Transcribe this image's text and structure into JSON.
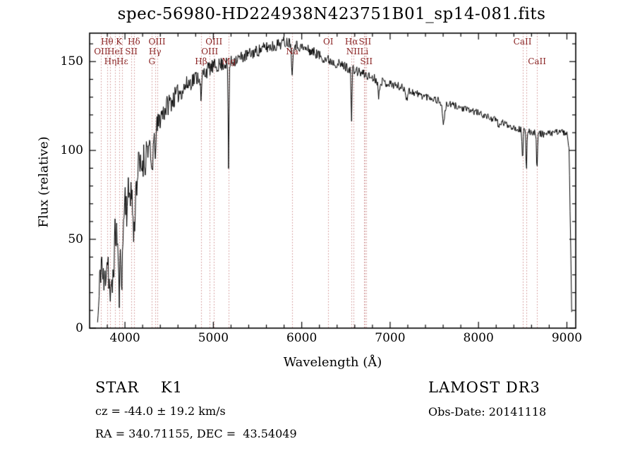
{
  "chart_data": {
    "type": "line",
    "title": "spec-56980-HD224938N423751B01_sp14-081.fits",
    "xlabel": "Wavelength (Å)",
    "ylabel": "Flux (relative)",
    "xlim": [
      3600,
      9100
    ],
    "ylim": [
      0,
      166
    ],
    "x_ticks": [
      4000,
      5000,
      6000,
      7000,
      8000,
      9000
    ],
    "y_ticks": [
      0,
      50,
      100,
      150
    ],
    "x_minor_step": 200,
    "y_minor_step": 10,
    "grid": false,
    "legend": "none",
    "frame_color": "#000000",
    "spectrum_color": "#000000",
    "line_marker_color": "#cc8a8a",
    "line_label_color": "#8b2525",
    "series": {
      "name": "flux",
      "range": [
        3690,
        9055
      ],
      "sample_step": 6,
      "seed": 11,
      "continuum": [
        [
          3690,
          3
        ],
        [
          3705,
          12
        ],
        [
          3720,
          32
        ],
        [
          3735,
          40
        ],
        [
          3750,
          28
        ],
        [
          3765,
          22
        ],
        [
          3780,
          32
        ],
        [
          3795,
          40
        ],
        [
          3810,
          38
        ],
        [
          3825,
          22
        ],
        [
          3840,
          14
        ],
        [
          3855,
          22
        ],
        [
          3870,
          35
        ],
        [
          3885,
          48
        ],
        [
          3900,
          55
        ],
        [
          3915,
          50
        ],
        [
          3930,
          42
        ],
        [
          3945,
          38
        ],
        [
          3960,
          42
        ],
        [
          3975,
          55
        ],
        [
          3990,
          68
        ],
        [
          4005,
          75
        ],
        [
          4020,
          68
        ],
        [
          4040,
          74
        ],
        [
          4060,
          80
        ],
        [
          4080,
          72
        ],
        [
          4100,
          63
        ],
        [
          4120,
          76
        ],
        [
          4140,
          86
        ],
        [
          4160,
          92
        ],
        [
          4180,
          88
        ],
        [
          4200,
          94
        ],
        [
          4230,
          99
        ],
        [
          4260,
          103
        ],
        [
          4290,
          97
        ],
        [
          4320,
          104
        ],
        [
          4350,
          110
        ],
        [
          4400,
          119
        ],
        [
          4450,
          123
        ],
        [
          4500,
          127
        ],
        [
          4550,
          129
        ],
        [
          4600,
          132
        ],
        [
          4650,
          134
        ],
        [
          4700,
          137
        ],
        [
          4750,
          139
        ],
        [
          4800,
          141
        ],
        [
          4850,
          142
        ],
        [
          4900,
          144
        ],
        [
          4950,
          146
        ],
        [
          5000,
          147
        ],
        [
          5060,
          148
        ],
        [
          5120,
          149
        ],
        [
          5180,
          149
        ],
        [
          5240,
          151
        ],
        [
          5300,
          152
        ],
        [
          5400,
          154
        ],
        [
          5500,
          156
        ],
        [
          5600,
          158
        ],
        [
          5700,
          159
        ],
        [
          5800,
          161
        ],
        [
          5870,
          161
        ],
        [
          5950,
          159
        ],
        [
          6050,
          157
        ],
        [
          6150,
          155
        ],
        [
          6250,
          152
        ],
        [
          6350,
          150
        ],
        [
          6450,
          148
        ],
        [
          6550,
          146
        ],
        [
          6650,
          144
        ],
        [
          6750,
          142
        ],
        [
          6850,
          140
        ],
        [
          6950,
          138
        ],
        [
          7050,
          137
        ],
        [
          7150,
          135
        ],
        [
          7250,
          133
        ],
        [
          7350,
          131
        ],
        [
          7450,
          130
        ],
        [
          7550,
          128
        ],
        [
          7650,
          126
        ],
        [
          7750,
          125
        ],
        [
          7850,
          123
        ],
        [
          7950,
          122
        ],
        [
          8050,
          120
        ],
        [
          8150,
          118
        ],
        [
          8250,
          116
        ],
        [
          8350,
          114
        ],
        [
          8450,
          112
        ],
        [
          8550,
          111
        ],
        [
          8650,
          110
        ],
        [
          8750,
          109
        ],
        [
          8850,
          110
        ],
        [
          8930,
          111
        ],
        [
          9000,
          109
        ],
        [
          9025,
          100
        ],
        [
          9040,
          55
        ],
        [
          9055,
          6
        ]
      ],
      "absorption_bands": [
        [
          3933,
          22,
          7
        ],
        [
          3970,
          18,
          7
        ],
        [
          4102,
          14,
          7
        ],
        [
          4226,
          8,
          5
        ],
        [
          4305,
          12,
          9
        ],
        [
          4340,
          10,
          6
        ],
        [
          4861,
          16,
          6
        ],
        [
          5172,
          58,
          5
        ],
        [
          5892,
          20,
          6
        ],
        [
          6563,
          30,
          5
        ],
        [
          6870,
          9,
          8
        ],
        [
          7190,
          5,
          10
        ],
        [
          7605,
          11,
          14
        ],
        [
          8230,
          4,
          8
        ],
        [
          8498,
          18,
          5
        ],
        [
          8542,
          25,
          5
        ],
        [
          8662,
          22,
          5
        ]
      ],
      "noise_profile": [
        [
          3690,
          11
        ],
        [
          3850,
          13
        ],
        [
          4000,
          12
        ],
        [
          4150,
          11
        ],
        [
          4300,
          8
        ],
        [
          4500,
          6
        ],
        [
          4700,
          5
        ],
        [
          4900,
          4.5
        ],
        [
          5100,
          4
        ],
        [
          5400,
          3.5
        ],
        [
          5700,
          3.5
        ],
        [
          6000,
          3
        ],
        [
          6300,
          3
        ],
        [
          6600,
          2.8
        ],
        [
          7000,
          2.4
        ],
        [
          7400,
          2.2
        ],
        [
          7800,
          2
        ],
        [
          8200,
          1.8
        ],
        [
          8600,
          2
        ],
        [
          9055,
          1.5
        ]
      ]
    },
    "spectral_lines": [
      {
        "label": "Hθ",
        "wavelength": 3798,
        "row": 0
      },
      {
        "label": "K",
        "wavelength": 3933,
        "row": 0
      },
      {
        "label": "Hδ",
        "wavelength": 4102,
        "row": 0
      },
      {
        "label": "OIII",
        "wavelength": 4363,
        "row": 0
      },
      {
        "label": "OIII",
        "wavelength": 5007,
        "row": 0
      },
      {
        "label": "OI",
        "wavelength": 6300,
        "row": 0
      },
      {
        "label": "Hα",
        "wavelength": 6563,
        "row": 0
      },
      {
        "label": "SII",
        "wavelength": 6716,
        "row": 0
      },
      {
        "label": "CaII",
        "wavelength": 8498,
        "row": 0
      },
      {
        "label": "OII",
        "wavelength": 3727,
        "row": 1
      },
      {
        "label": "HeI",
        "wavelength": 3889,
        "row": 1
      },
      {
        "label": "SII",
        "wavelength": 4072,
        "row": 1
      },
      {
        "label": "Hγ",
        "wavelength": 4340,
        "row": 1
      },
      {
        "label": "OIII",
        "wavelength": 4959,
        "row": 1
      },
      {
        "label": "Na",
        "wavelength": 5892,
        "row": 1
      },
      {
        "label": "NII",
        "wavelength": 6583,
        "row": 1
      },
      {
        "label": "Li",
        "wavelength": 6708,
        "row": 1
      },
      {
        "label": "",
        "wavelength": 8542,
        "row": 1
      },
      {
        "label": "Hη",
        "wavelength": 3835,
        "row": 2
      },
      {
        "label": "Hε",
        "wavelength": 3970,
        "row": 2
      },
      {
        "label": "G",
        "wavelength": 4305,
        "row": 2
      },
      {
        "label": "Hβ",
        "wavelength": 4861,
        "row": 2
      },
      {
        "label": "Mg",
        "wavelength": 5175,
        "row": 2
      },
      {
        "label": "SII",
        "wavelength": 6731,
        "row": 2
      },
      {
        "label": "CaII",
        "wavelength": 8662,
        "row": 2
      }
    ]
  },
  "annotations": {
    "object_class": "STAR    K1",
    "survey": "LAMOST DR3",
    "cz": "cz = -44.0 ± 19.2 km/s",
    "obs_date": "Obs-Date: 20141118",
    "ra_dec": "RA = 340.71155, DEC =  43.54049"
  }
}
